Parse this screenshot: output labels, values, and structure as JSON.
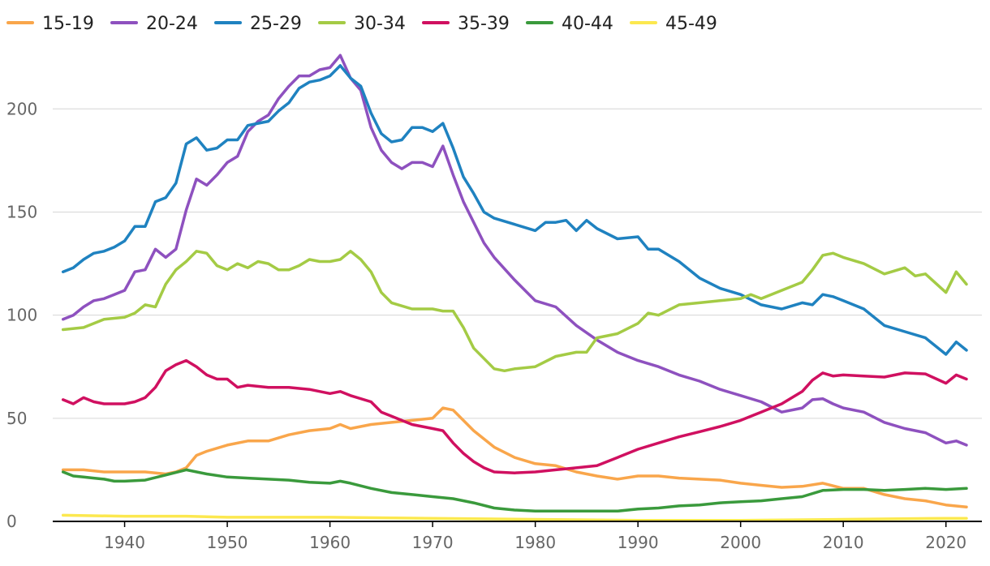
{
  "chart_data": {
    "type": "line",
    "title": "",
    "xlabel": "",
    "ylabel": "",
    "xlim": [
      1933,
      2023.5
    ],
    "ylim": [
      0,
      230
    ],
    "grid": true,
    "legend_position": "top-left",
    "x_ticks": [
      1940,
      1950,
      1960,
      1970,
      1980,
      1990,
      2000,
      2010,
      2020
    ],
    "x_tick_labels": [
      "1940",
      "1950",
      "1960",
      "1970",
      "1980",
      "1990",
      "2000",
      "2010",
      "2020"
    ],
    "y_ticks": [
      0,
      50,
      100,
      150,
      200
    ],
    "y_tick_labels": [
      "0",
      "50",
      "100",
      "150",
      "200"
    ],
    "series": [
      {
        "name": "15-19",
        "color": "#f9a64b",
        "x": [
          1934,
          1936,
          1938,
          1940,
          1942,
          1944,
          1945,
          1946,
          1947,
          1948,
          1950,
          1952,
          1954,
          1956,
          1958,
          1960,
          1961,
          1962,
          1964,
          1966,
          1968,
          1970,
          1971,
          1972,
          1974,
          1976,
          1978,
          1980,
          1982,
          1984,
          1986,
          1988,
          1990,
          1992,
          1994,
          1996,
          1998,
          2000,
          2002,
          2004,
          2006,
          2008,
          2010,
          2012,
          2014,
          2016,
          2018,
          2020,
          2022
        ],
        "values": [
          25,
          25,
          24,
          24,
          24,
          23,
          24,
          26,
          32,
          34,
          37,
          39,
          39,
          42,
          44,
          45,
          47,
          45,
          47,
          48,
          49,
          50,
          55,
          54,
          44,
          36,
          31,
          28,
          27,
          24,
          22,
          20.5,
          22,
          22,
          21,
          20.5,
          20,
          18.5,
          17.5,
          16.5,
          17,
          18.5,
          16,
          16,
          13,
          11,
          10,
          8,
          7
        ]
      },
      {
        "name": "20-24",
        "color": "#8e51bf",
        "x": [
          1934,
          1935,
          1936,
          1937,
          1938,
          1939,
          1940,
          1941,
          1942,
          1943,
          1944,
          1945,
          1946,
          1947,
          1948,
          1949,
          1950,
          1951,
          1952,
          1953,
          1954,
          1955,
          1956,
          1957,
          1958,
          1959,
          1960,
          1961,
          1962,
          1963,
          1964,
          1965,
          1966,
          1967,
          1968,
          1969,
          1970,
          1971,
          1972,
          1973,
          1974,
          1975,
          1976,
          1978,
          1980,
          1982,
          1984,
          1986,
          1988,
          1990,
          1992,
          1994,
          1996,
          1998,
          2000,
          2002,
          2004,
          2006,
          2007,
          2008,
          2009,
          2010,
          2012,
          2014,
          2016,
          2018,
          2020,
          2021,
          2022
        ],
        "values": [
          98,
          100,
          104,
          107,
          108,
          110,
          112,
          121,
          122,
          132,
          128,
          132,
          151,
          166,
          163,
          168,
          174,
          177,
          189,
          194,
          197,
          205,
          211,
          216,
          216,
          219,
          220,
          226,
          215,
          209,
          191,
          180,
          174,
          171,
          174,
          174,
          172,
          182,
          168,
          155,
          145,
          135,
          128,
          117,
          107,
          104,
          95,
          88,
          82,
          78,
          75,
          71,
          68,
          64,
          61,
          58,
          53,
          55,
          59,
          59.5,
          57,
          55,
          53,
          48,
          45,
          43,
          38,
          39,
          37
        ]
      },
      {
        "name": "25-29",
        "color": "#1f82c0",
        "x": [
          1934,
          1935,
          1936,
          1937,
          1938,
          1939,
          1940,
          1941,
          1942,
          1943,
          1944,
          1945,
          1946,
          1947,
          1948,
          1949,
          1950,
          1951,
          1952,
          1953,
          1954,
          1955,
          1956,
          1957,
          1958,
          1959,
          1960,
          1961,
          1962,
          1963,
          1964,
          1965,
          1966,
          1967,
          1968,
          1969,
          1970,
          1971,
          1972,
          1973,
          1974,
          1975,
          1976,
          1978,
          1980,
          1981,
          1982,
          1983,
          1984,
          1985,
          1986,
          1988,
          1990,
          1991,
          1992,
          1994,
          1996,
          1998,
          2000,
          2002,
          2004,
          2006,
          2007,
          2008,
          2009,
          2010,
          2012,
          2014,
          2016,
          2018,
          2020,
          2021,
          2022
        ],
        "values": [
          121,
          123,
          127,
          130,
          131,
          133,
          136,
          143,
          143,
          155,
          157,
          164,
          183,
          186,
          180,
          181,
          185,
          185,
          192,
          193,
          194,
          199,
          203,
          210,
          213,
          214,
          216,
          221,
          215,
          211,
          198,
          188,
          184,
          185,
          191,
          191,
          189,
          193,
          181,
          167,
          159,
          150,
          147,
          144,
          141,
          145,
          145,
          146,
          141,
          146,
          142,
          137,
          138,
          132,
          132,
          126,
          118,
          113,
          110,
          105,
          103,
          106,
          105,
          110,
          109,
          107,
          103,
          95,
          92,
          89,
          81,
          87,
          83
        ]
      },
      {
        "name": "30-34",
        "color": "#a4cb45",
        "x": [
          1934,
          1936,
          1938,
          1940,
          1941,
          1942,
          1943,
          1944,
          1945,
          1946,
          1947,
          1948,
          1949,
          1950,
          1951,
          1952,
          1953,
          1954,
          1955,
          1956,
          1957,
          1958,
          1959,
          1960,
          1961,
          1962,
          1963,
          1964,
          1965,
          1966,
          1968,
          1970,
          1971,
          1972,
          1973,
          1974,
          1976,
          1977,
          1978,
          1980,
          1982,
          1984,
          1985,
          1986,
          1988,
          1990,
          1991,
          1992,
          1994,
          1996,
          1998,
          2000,
          2001,
          2002,
          2004,
          2006,
          2007,
          2008,
          2009,
          2010,
          2012,
          2014,
          2016,
          2017,
          2018,
          2020,
          2021,
          2022
        ],
        "values": [
          93,
          94,
          98,
          99,
          101,
          105,
          104,
          115,
          122,
          126,
          131,
          130,
          124,
          122,
          125,
          123,
          126,
          125,
          122,
          122,
          124,
          127,
          126,
          126,
          127,
          131,
          127,
          121,
          111,
          106,
          103,
          103,
          102,
          102,
          94,
          84,
          74,
          73,
          74,
          75,
          80,
          82,
          82,
          89,
          91,
          96,
          101,
          100,
          105,
          106,
          107,
          108,
          110,
          108,
          112,
          116,
          122,
          129,
          130,
          128,
          125,
          120,
          123,
          119,
          120,
          111,
          121,
          115
        ]
      },
      {
        "name": "35-39",
        "color": "#d01060",
        "x": [
          1934,
          1935,
          1936,
          1937,
          1938,
          1939,
          1940,
          1941,
          1942,
          1943,
          1944,
          1945,
          1946,
          1947,
          1948,
          1949,
          1950,
          1951,
          1952,
          1954,
          1956,
          1958,
          1960,
          1961,
          1962,
          1964,
          1965,
          1966,
          1968,
          1970,
          1971,
          1972,
          1973,
          1974,
          1975,
          1976,
          1978,
          1980,
          1982,
          1984,
          1986,
          1988,
          1990,
          1992,
          1994,
          1996,
          1998,
          2000,
          2002,
          2004,
          2006,
          2007,
          2008,
          2009,
          2010,
          2012,
          2014,
          2016,
          2018,
          2020,
          2021,
          2022
        ],
        "values": [
          59,
          57,
          60,
          58,
          57,
          57,
          57,
          58,
          60,
          65,
          73,
          76,
          78,
          75,
          71,
          69,
          69,
          65,
          66,
          65,
          65,
          64,
          62,
          63,
          61,
          58,
          53,
          51,
          47,
          45,
          44,
          38,
          33,
          29,
          26,
          24,
          23.5,
          24,
          25,
          26,
          27,
          31,
          35,
          38,
          41,
          43.5,
          46,
          49,
          53,
          57,
          63,
          68.5,
          72,
          70.5,
          71,
          70.5,
          70,
          72,
          71.5,
          67,
          71,
          69
        ]
      },
      {
        "name": "40-44",
        "color": "#3a9a3c",
        "x": [
          1934,
          1935,
          1936,
          1937,
          1938,
          1939,
          1940,
          1942,
          1944,
          1946,
          1948,
          1950,
          1952,
          1954,
          1956,
          1958,
          1960,
          1961,
          1962,
          1964,
          1966,
          1968,
          1970,
          1972,
          1974,
          1976,
          1978,
          1980,
          1982,
          1984,
          1986,
          1988,
          1990,
          1992,
          1994,
          1996,
          1998,
          2000,
          2002,
          2004,
          2006,
          2008,
          2010,
          2012,
          2014,
          2016,
          2018,
          2020,
          2022
        ],
        "values": [
          24,
          22,
          21.5,
          21,
          20.5,
          19.5,
          19.5,
          20,
          22.5,
          25,
          23,
          21.5,
          21,
          20.5,
          20,
          19,
          18.5,
          19.5,
          18.5,
          16,
          14,
          13,
          12,
          11,
          9,
          6.5,
          5.5,
          5,
          5,
          5,
          5,
          5,
          6,
          6.5,
          7.5,
          8,
          9,
          9.5,
          10,
          11,
          12,
          15,
          15.5,
          15.5,
          15,
          15.5,
          16,
          15.5,
          16
        ]
      },
      {
        "name": "45-49",
        "color": "#fce84f",
        "x": [
          1934,
          1940,
          1946,
          1950,
          1960,
          1970,
          1980,
          1990,
          2000,
          2010,
          2020,
          2022
        ],
        "values": [
          3,
          2.5,
          2.5,
          2,
          2,
          1.5,
          1,
          0.5,
          0.5,
          1,
          1.5,
          1.5
        ]
      }
    ]
  }
}
